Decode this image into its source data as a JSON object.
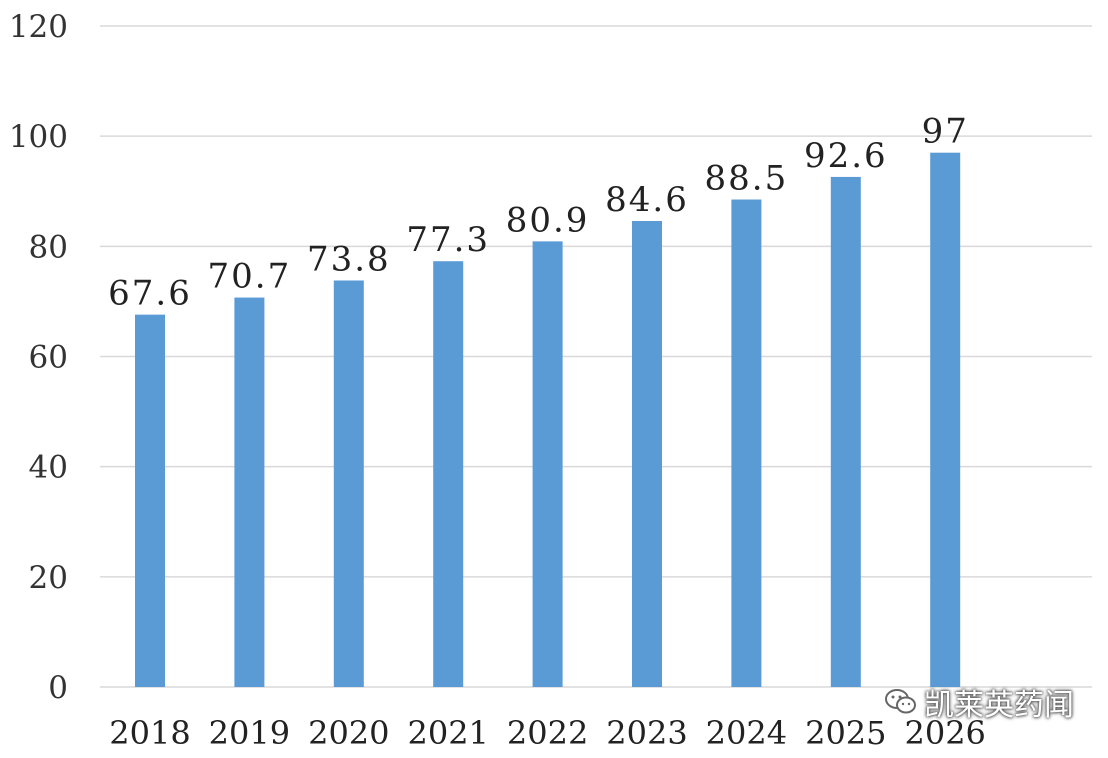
{
  "chart_data": {
    "type": "bar",
    "categories": [
      "2018",
      "2019",
      "2020",
      "2021",
      "2022",
      "2023",
      "2024",
      "2025",
      "2026"
    ],
    "values": [
      67.6,
      70.7,
      73.8,
      77.3,
      80.9,
      84.6,
      88.5,
      92.6,
      97
    ],
    "data_labels": [
      "67.6",
      "70.7",
      "73.8",
      "77.3",
      "80.9",
      "84.6",
      "88.5",
      "92.6",
      "97"
    ],
    "title": "",
    "xlabel": "",
    "ylabel": "",
    "ylim": [
      0,
      120
    ],
    "yticks": [
      0,
      20,
      40,
      60,
      80,
      100,
      120
    ],
    "grid": true,
    "legend": "none",
    "bar_color": "#5b9bd5"
  },
  "watermark": {
    "text": "凯莱英药闻",
    "icon": "wechat-icon"
  }
}
